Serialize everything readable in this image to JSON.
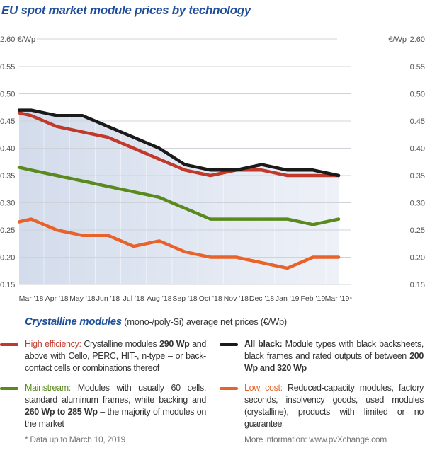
{
  "chart_data": {
    "type": "line",
    "title": "EU spot market module prices  by technology",
    "ylabel_left": "2.60 €/Wp",
    "ylabel_right": "€/Wp",
    "y_ticks": [
      "0.15",
      "0.20",
      "0.25",
      "0.30",
      "0.35",
      "0.40",
      "0.45",
      "0.50",
      "0.55"
    ],
    "y_top_break_label": "2.60",
    "ylim": [
      0.15,
      0.55
    ],
    "grid": true,
    "categories": [
      "Mar '18",
      "Apr '18",
      "May '18",
      "Jun '18",
      "Jul '18",
      "Aug '18",
      "Sep '18",
      "Oct '18",
      "Nov '18",
      "Dec '18",
      "Jan '19",
      "Feb '19",
      "Mar '19*"
    ],
    "series": [
      {
        "name": "All black",
        "color": "#1a1a1a",
        "values": [
          0.47,
          0.46,
          0.46,
          0.44,
          0.42,
          0.4,
          0.37,
          0.36,
          0.36,
          0.37,
          0.36,
          0.36,
          0.35
        ]
      },
      {
        "name": "High efficiency",
        "color": "#c0392b",
        "values": [
          0.46,
          0.44,
          0.43,
          0.42,
          0.4,
          0.38,
          0.36,
          0.35,
          0.36,
          0.36,
          0.35,
          0.35,
          0.35
        ]
      },
      {
        "name": "Mainstream",
        "color": "#5a8a1e",
        "values": [
          0.36,
          0.35,
          0.34,
          0.33,
          0.32,
          0.31,
          0.29,
          0.27,
          0.27,
          0.27,
          0.27,
          0.26,
          0.27
        ]
      },
      {
        "name": "Low cost",
        "color": "#e8622a",
        "values": [
          0.27,
          0.25,
          0.24,
          0.24,
          0.22,
          0.23,
          0.21,
          0.2,
          0.2,
          0.19,
          0.18,
          0.2,
          0.2
        ]
      }
    ],
    "start_values": [
      0.47,
      0.465,
      0.365,
      0.265
    ]
  },
  "subtitle": {
    "bold": "Crystalline modules",
    "rest": " (mono-/poly-Si) average net prices (€/Wp)"
  },
  "legend": [
    {
      "label": "High efficiency:",
      "color": "#c0392b",
      "segments": [
        " Crystalline modules ",
        "290 Wp",
        " and above with Cello, PERC, HIT-, n-type – or back-contact cells or combinations thereof"
      ]
    },
    {
      "label": "All black:",
      "color": "#1a1a1a",
      "segments": [
        " Module types with black backsheets, black frames and rated outputs of between ",
        "200 Wp and 320 Wp",
        ""
      ]
    },
    {
      "label": "Mainstream:",
      "color": "#5a8a1e",
      "segments": [
        " Modules with usually 60 cells, standard aluminum frames, white backing and ",
        "260 Wp to 285 Wp",
        " – the majority of modules on the market"
      ]
    },
    {
      "label": "Low cost:",
      "color": "#e8622a",
      "segments": [
        " Reduced-capacity modules, factory seconds, insolvency goods, used modules (crystalline), products with limited or no guarantee",
        "",
        ""
      ]
    }
  ],
  "footnote": "* Data up to March 10, 2019",
  "more_info": "More information: www.pvXchange.com"
}
